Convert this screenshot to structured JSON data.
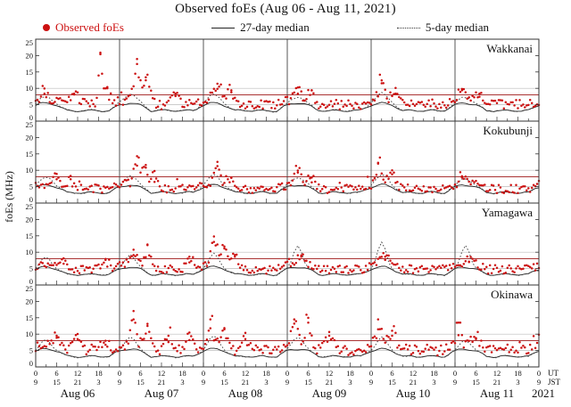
{
  "chart_data": {
    "type": "scatter",
    "title": "Observed foEs (Aug 06 - Aug 11, 2021)",
    "ylabel": "foEs (MHz)",
    "ylim": [
      0,
      25
    ],
    "yticks": [
      0,
      5,
      10,
      15,
      20,
      25
    ],
    "grid_lines_mhz": [
      5,
      10
    ],
    "red_line_mhz": 8,
    "x_hours_total": 144,
    "x_tick_step_hours": 6,
    "x_minor_tick_hours": 3,
    "x_tick_ut_labels": [
      0,
      6,
      12,
      18
    ],
    "x_tick_jst_labels": [
      9,
      15,
      21,
      3
    ],
    "dates": [
      "Aug 06",
      "Aug 07",
      "Aug 08",
      "Aug 09",
      "Aug 10",
      "Aug 11"
    ],
    "year_label": "2021",
    "ut_label": "UT",
    "jst_label": "JST",
    "legend": [
      {
        "marker": "dot",
        "label": "Observed foEs"
      },
      {
        "marker": "solid-line",
        "label": "27-day median"
      },
      {
        "marker": "dotted-line",
        "label": "5-day median"
      }
    ],
    "colors": {
      "point": "#cc1111",
      "median27": "#222222",
      "median5": "#444444",
      "red_line": "#aa3333",
      "grid": "#bbbbbb",
      "frame": "#333333",
      "day_line": "#444444"
    },
    "stations": [
      {
        "name": "Wakkanai",
        "seed": 7,
        "base": 4.9,
        "noise": 1.3,
        "spikes": [
          [
            2.5,
            4,
            0.8
          ],
          [
            11,
            4,
            1.5
          ],
          [
            18.5,
            16.5,
            0.5
          ],
          [
            20.5,
            6,
            0.8
          ],
          [
            29,
            13,
            0.9
          ],
          [
            31.5,
            9,
            1.2
          ],
          [
            40,
            4,
            1
          ],
          [
            52,
            7,
            1
          ],
          [
            56,
            5,
            1
          ],
          [
            75,
            4,
            1.2
          ],
          [
            79,
            5,
            0.8
          ],
          [
            99,
            8,
            0.8
          ],
          [
            103,
            4,
            1
          ],
          [
            122,
            5,
            0.8
          ],
          [
            127,
            4,
            0.8
          ]
        ],
        "median5_peaks": [
          [
            3,
            2,
            2
          ],
          [
            27,
            3,
            2
          ],
          [
            51,
            2.5,
            2
          ],
          [
            75,
            2,
            2
          ],
          [
            99,
            3,
            2
          ],
          [
            123,
            2,
            2
          ]
        ]
      },
      {
        "name": "Kokubunji",
        "seed": 13,
        "base": 4.2,
        "noise": 1.2,
        "spikes": [
          [
            6,
            3.5,
            1
          ],
          [
            10,
            4.5,
            0.8
          ],
          [
            29,
            10.5,
            0.8
          ],
          [
            31.5,
            7,
            1
          ],
          [
            34,
            6,
            0.8
          ],
          [
            52,
            7.5,
            0.9
          ],
          [
            56,
            4,
            1
          ],
          [
            75,
            5.5,
            0.9
          ],
          [
            79,
            4,
            0.9
          ],
          [
            98,
            8.5,
            0.8
          ],
          [
            102,
            5,
            1
          ],
          [
            122,
            4,
            0.9
          ]
        ],
        "median5_peaks": [
          [
            3,
            2.5,
            2
          ],
          [
            27,
            3,
            2
          ],
          [
            51,
            3,
            2
          ],
          [
            75,
            2.5,
            2
          ],
          [
            99,
            3,
            2
          ],
          [
            123,
            2,
            2
          ]
        ]
      },
      {
        "name": "Yamagawa",
        "seed": 21,
        "base": 4.6,
        "noise": 1.2,
        "spikes": [
          [
            8,
            4,
            1
          ],
          [
            20,
            3.5,
            1
          ],
          [
            28,
            5,
            1
          ],
          [
            32,
            8,
            0.8
          ],
          [
            44,
            4.5,
            1
          ],
          [
            51,
            9,
            0.9
          ],
          [
            54,
            7,
            1
          ],
          [
            57,
            5,
            1
          ],
          [
            76,
            4.5,
            1
          ],
          [
            100,
            4.5,
            1
          ],
          [
            124,
            3,
            1
          ]
        ],
        "median5_peaks": [
          [
            3,
            3,
            1.5
          ],
          [
            27,
            4,
            1.5
          ],
          [
            51,
            4,
            1.5
          ],
          [
            75,
            7,
            1.2
          ],
          [
            99,
            7.5,
            1.2
          ],
          [
            123,
            7,
            1.2
          ]
        ]
      },
      {
        "name": "Okinawa",
        "seed": 29,
        "base": 5.0,
        "noise": 1.5,
        "spikes": [
          [
            6,
            5,
            0.9
          ],
          [
            12,
            4,
            1
          ],
          [
            20,
            3.5,
            1
          ],
          [
            28,
            10,
            0.8
          ],
          [
            32,
            8,
            0.9
          ],
          [
            38,
            5,
            1
          ],
          [
            44,
            6,
            0.9
          ],
          [
            50,
            10,
            0.8
          ],
          [
            54,
            7,
            0.9
          ],
          [
            60,
            4,
            1
          ],
          [
            74,
            10,
            0.8
          ],
          [
            78,
            9,
            0.9
          ],
          [
            84,
            5,
            1
          ],
          [
            98,
            7,
            0.9
          ],
          [
            102,
            5,
            1
          ],
          [
            121,
            9,
            0.7
          ],
          [
            126,
            4,
            1
          ]
        ],
        "median5_peaks": [
          [
            3,
            3,
            1.5
          ],
          [
            27,
            4,
            1.5
          ],
          [
            51,
            4,
            1.5
          ],
          [
            75,
            4,
            1.5
          ],
          [
            99,
            3.5,
            1.5
          ],
          [
            123,
            3,
            1.5
          ]
        ]
      }
    ]
  }
}
